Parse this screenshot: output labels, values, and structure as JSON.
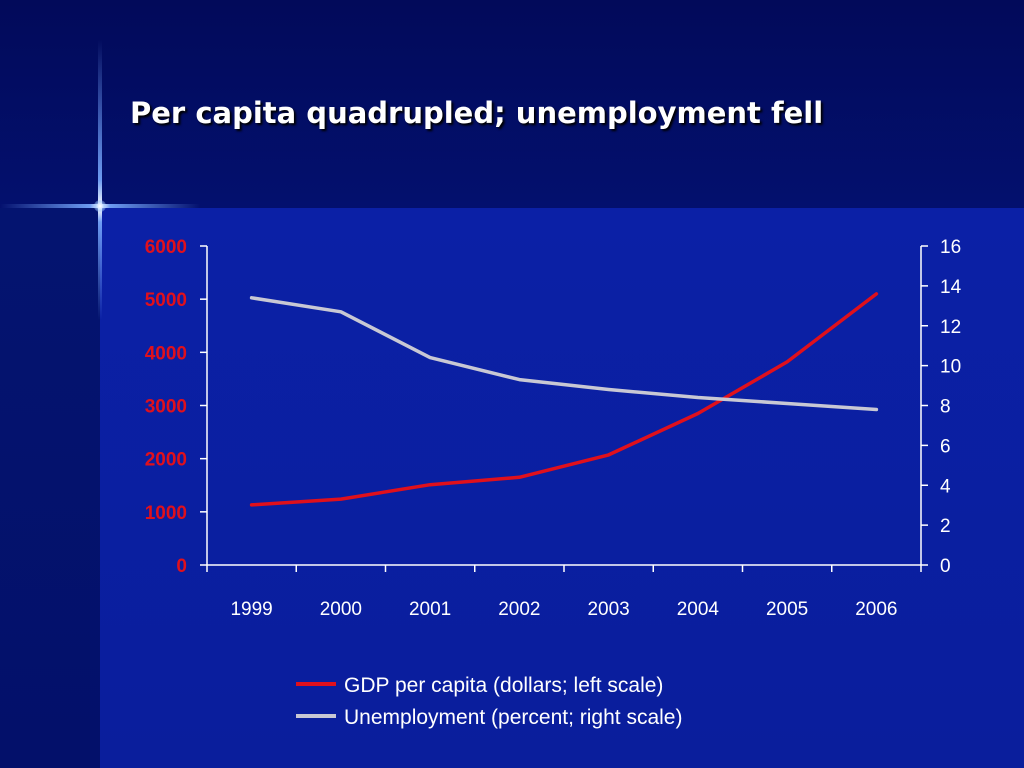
{
  "slide": {
    "title": "Per capita quadrupled; unemployment fell"
  },
  "colors": {
    "gdp": "#e0101c",
    "unemployment": "#c8c8d4",
    "axis": "#ffffff",
    "left_tick_labels": "#e0101c"
  },
  "chart_data": {
    "type": "line",
    "categories": [
      "1999",
      "2000",
      "2001",
      "2002",
      "2003",
      "2004",
      "2005",
      "2006"
    ],
    "series": [
      {
        "name": "GDP per capita (dollars; left scale)",
        "axis": "left",
        "values": [
          1130,
          1240,
          1510,
          1650,
          2070,
          2850,
          3820,
          5100
        ]
      },
      {
        "name": "Unemployment (percent; right scale)",
        "axis": "right",
        "values": [
          13.4,
          12.7,
          10.4,
          9.3,
          8.8,
          8.4,
          8.1,
          7.8
        ]
      }
    ],
    "y_left": {
      "range": [
        0,
        6000
      ],
      "ticks": [
        "0",
        "1000",
        "2000",
        "3000",
        "4000",
        "5000",
        "6000"
      ]
    },
    "y_right": {
      "range": [
        0,
        16
      ],
      "ticks": [
        "0",
        "2",
        "4",
        "6",
        "8",
        "10",
        "12",
        "14",
        "16"
      ]
    },
    "grid": false,
    "legend_position": "bottom"
  }
}
